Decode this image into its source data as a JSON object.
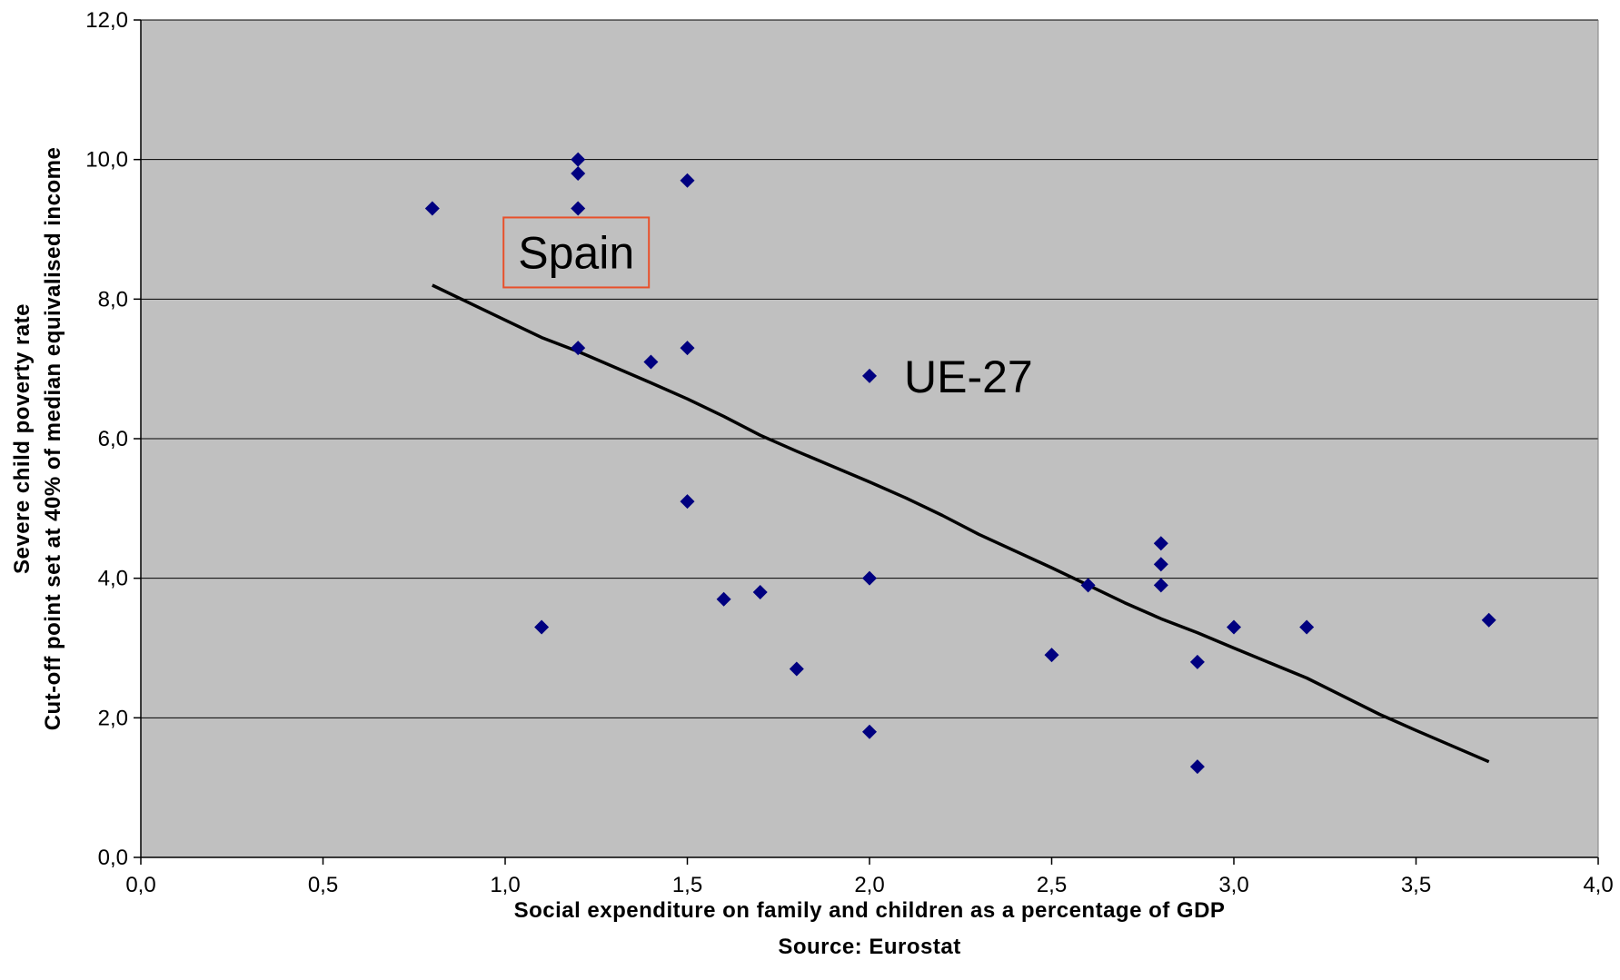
{
  "chart_data": {
    "type": "scatter",
    "title": "",
    "xlabel": "Social expenditure on family and children as a percentage of GDP",
    "source": "Source: Eurostat",
    "ylabel_lines": [
      "Severe child poverty rate",
      "Cut-off point set at 40% of median equivalised income"
    ],
    "xlim": [
      0,
      4
    ],
    "ylim": [
      0,
      12
    ],
    "x_ticks": [
      "0,0",
      "0,5",
      "1,0",
      "1,5",
      "2,0",
      "2,5",
      "3,0",
      "3,5",
      "4,0"
    ],
    "y_ticks": [
      "0,0",
      "2,0",
      "4,0",
      "6,0",
      "8,0",
      "10,0",
      "12,0"
    ],
    "grid": "horizontal",
    "plot_background": "#c0c0c0",
    "marker_color": "#000080",
    "trend_color": "#000000",
    "annotation_box_color": "#e8502a",
    "points": [
      {
        "x": 0.8,
        "y": 9.3
      },
      {
        "x": 1.1,
        "y": 3.3
      },
      {
        "x": 1.2,
        "y": 10.0
      },
      {
        "x": 1.2,
        "y": 9.8
      },
      {
        "x": 1.2,
        "y": 9.3
      },
      {
        "x": 1.2,
        "y": 7.3
      },
      {
        "x": 1.4,
        "y": 7.1
      },
      {
        "x": 1.5,
        "y": 9.7
      },
      {
        "x": 1.5,
        "y": 7.3
      },
      {
        "x": 1.5,
        "y": 5.1
      },
      {
        "x": 1.6,
        "y": 3.7
      },
      {
        "x": 1.7,
        "y": 3.8
      },
      {
        "x": 1.8,
        "y": 2.7
      },
      {
        "x": 2.0,
        "y": 6.9
      },
      {
        "x": 2.0,
        "y": 4.0
      },
      {
        "x": 2.0,
        "y": 1.8
      },
      {
        "x": 2.5,
        "y": 2.9
      },
      {
        "x": 2.6,
        "y": 3.9
      },
      {
        "x": 2.8,
        "y": 4.5
      },
      {
        "x": 2.8,
        "y": 4.2
      },
      {
        "x": 2.8,
        "y": 3.9
      },
      {
        "x": 2.9,
        "y": 2.8
      },
      {
        "x": 2.9,
        "y": 1.3
      },
      {
        "x": 3.0,
        "y": 3.3
      },
      {
        "x": 3.2,
        "y": 3.3
      },
      {
        "x": 3.7,
        "y": 3.4
      }
    ],
    "trend_line": {
      "x": [
        0.8,
        1.0,
        1.1,
        1.2,
        1.4,
        1.5,
        1.6,
        1.7,
        1.8,
        2.0,
        2.1,
        2.2,
        2.3,
        2.5,
        2.6,
        2.7,
        2.8,
        2.9,
        3.0,
        3.2,
        3.4,
        3.5,
        3.7
      ],
      "y": [
        8.2,
        7.7,
        7.45,
        7.25,
        6.8,
        6.57,
        6.32,
        6.05,
        5.82,
        5.38,
        5.15,
        4.9,
        4.63,
        4.15,
        3.9,
        3.65,
        3.42,
        3.22,
        3.0,
        2.57,
        2.05,
        1.82,
        1.37
      ]
    },
    "annotations": [
      {
        "text": "Spain",
        "boxed": true,
        "x": 1.2,
        "y": 9.3
      },
      {
        "text": "UE-27",
        "boxed": false,
        "x": 2.0,
        "y": 6.9
      }
    ]
  }
}
